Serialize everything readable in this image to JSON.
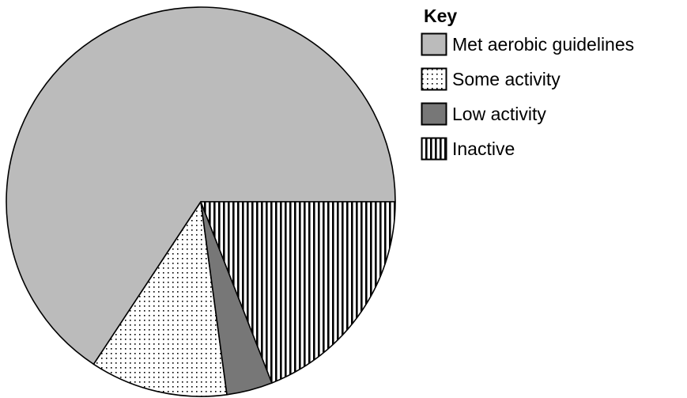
{
  "chart_data": {
    "type": "pie",
    "slices": [
      {
        "label": "Met aerobic guidelines",
        "value": 69,
        "fill": "solid",
        "color": "#bbbbbb"
      },
      {
        "label": "Some activity",
        "value": 12,
        "fill": "dots",
        "color": "#ffffff"
      },
      {
        "label": "Low activity",
        "value": 4,
        "fill": "solid",
        "color": "#777777"
      },
      {
        "label": "Inactive",
        "value": 20,
        "fill": "vertical-stripes",
        "color": "#ffffff"
      }
    ],
    "start_angle_deg": 0,
    "direction": "clockwise",
    "legend": {
      "title": "Key",
      "placement": "top-right"
    }
  }
}
